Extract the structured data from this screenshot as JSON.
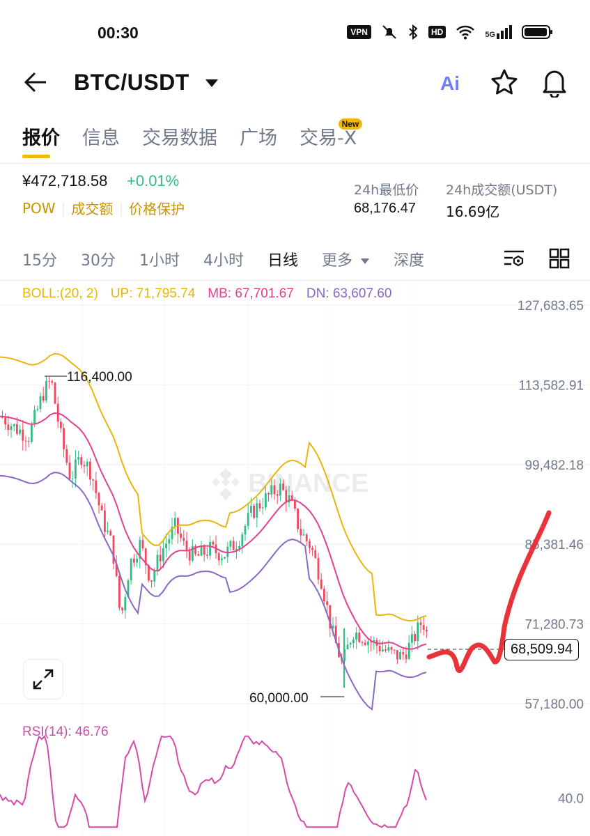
{
  "status_bar": {
    "time": "00:30",
    "vpn": "VPN",
    "hd": "HD",
    "network": "5G",
    "icons": [
      "vpn-icon",
      "mute-icon",
      "bluetooth-icon",
      "hd-icon",
      "wifi-icon",
      "signal-icon",
      "battery-icon"
    ]
  },
  "header": {
    "pair": "BTC/USDT",
    "ai_label": "Ai",
    "icons": [
      "back-arrow-icon",
      "caret-down-icon",
      "ai-icon",
      "star-icon",
      "bell-icon"
    ]
  },
  "tabs": [
    {
      "label": "报价",
      "active": true
    },
    {
      "label": "信息"
    },
    {
      "label": "交易数据"
    },
    {
      "label": "广场"
    },
    {
      "label": "交易-X",
      "badge": "New"
    }
  ],
  "price_block": {
    "price": "¥472,718.58",
    "change": "+0.01%",
    "tags": [
      "POW",
      "成交额",
      "价格保护"
    ],
    "low_label": "24h最低价",
    "low_value": "68,176.47",
    "volume_label": "24h成交额(USDT)",
    "volume_value": "16.69亿"
  },
  "intervals": [
    {
      "label": "15分"
    },
    {
      "label": "30分"
    },
    {
      "label": "1小时"
    },
    {
      "label": "4小时"
    },
    {
      "label": "日线",
      "active": true
    },
    {
      "label": "更多"
    },
    {
      "label": "深度"
    }
  ],
  "boll": {
    "label": "BOLL:(20, 2)",
    "up": "UP: 71,795.74",
    "mb": "MB: 67,701.67",
    "dn": "DN: 63,607.60"
  },
  "colors": {
    "accent": "#f0b90b",
    "up": "#2ebd85",
    "down": "#f6465d",
    "boll_up": "#e8b60a",
    "boll_mb": "#e1418d",
    "boll_dn": "#8b67c4",
    "rsi": "#d54aa9",
    "annotation": "#e8333a"
  },
  "watermark": "BINANCE",
  "chart_data": [
    {
      "type": "candlestick",
      "y_ticks": [
        "127,683.65",
        "113,582.91",
        "99,482.18",
        "85,381.46",
        "71,280.73",
        "57,180.00"
      ],
      "y_tick_values": [
        127683.65,
        113582.91,
        99482.18,
        85381.46,
        71280.73,
        57180.0
      ],
      "high_marker": "116,400.00",
      "low_marker": "60,000.00",
      "last_price": "68,509.94",
      "grid": true,
      "series": [
        {
          "name": "UP",
          "value": 71795.74
        },
        {
          "name": "MB",
          "value": 67701.67
        },
        {
          "name": "DN",
          "value": 63607.6
        }
      ]
    },
    {
      "type": "line",
      "label": "RSI(14): 46.76",
      "y_tick": "40.0",
      "y_tick_value": 40
    }
  ]
}
